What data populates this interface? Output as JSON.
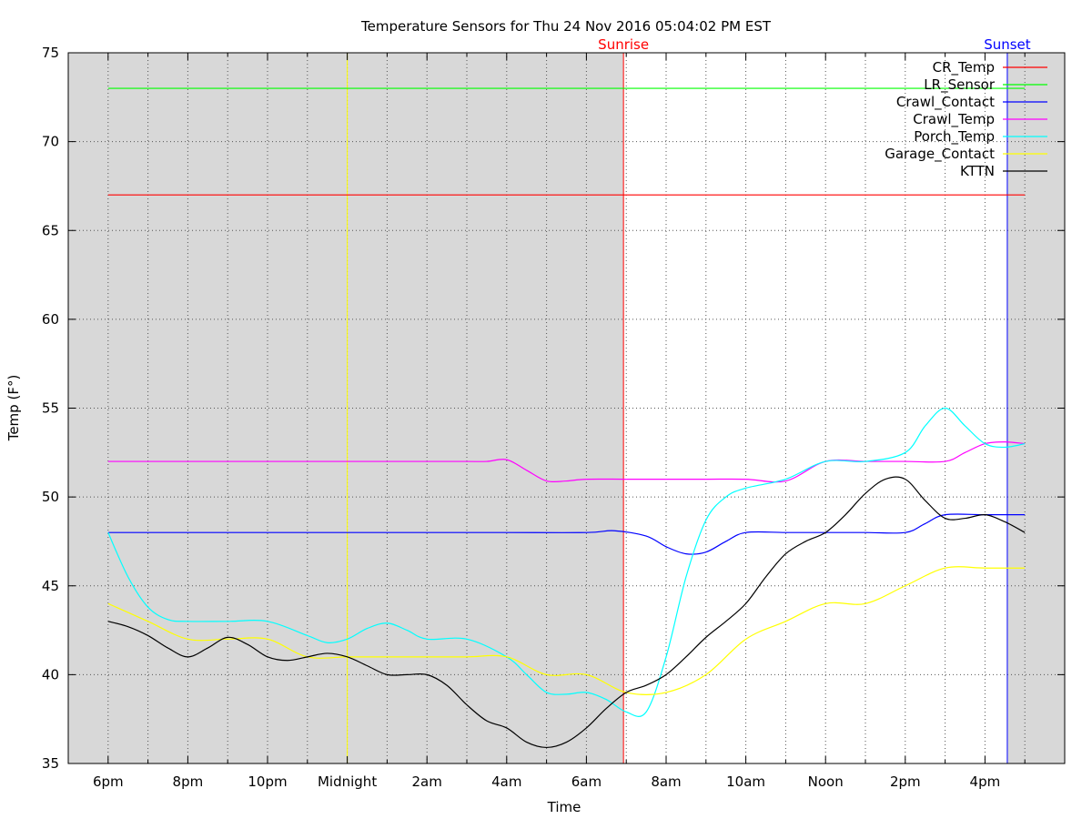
{
  "chart_data": {
    "type": "line",
    "title": "Temperature Sensors for Thu 24 Nov 2016 05:04:02 PM EST",
    "xlabel": "Time",
    "ylabel": "Temp (F°)",
    "xlim": [
      -1,
      24
    ],
    "ylim": [
      35,
      75
    ],
    "yticks": [
      35,
      40,
      45,
      50,
      55,
      60,
      65,
      70,
      75
    ],
    "xticks": [
      {
        "h": 0,
        "label": "6pm"
      },
      {
        "h": 2,
        "label": "8pm"
      },
      {
        "h": 4,
        "label": "10pm"
      },
      {
        "h": 6,
        "label": "Midnight"
      },
      {
        "h": 8,
        "label": "2am"
      },
      {
        "h": 10,
        "label": "4am"
      },
      {
        "h": 12,
        "label": "6am"
      },
      {
        "h": 14,
        "label": "8am"
      },
      {
        "h": 16,
        "label": "10am"
      },
      {
        "h": 18,
        "label": "Noon"
      },
      {
        "h": 20,
        "label": "2pm"
      },
      {
        "h": 22,
        "label": "4pm"
      }
    ],
    "grid": true,
    "legend_position": "top-right",
    "night_shading": [
      {
        "from": -1,
        "to": 12.93
      },
      {
        "from": 22.56,
        "to": 24
      }
    ],
    "markers": [
      {
        "label": "Sunrise",
        "h": 12.93,
        "color": "#ff0000"
      },
      {
        "label": "Sunset",
        "h": 22.56,
        "color": "#0000ff"
      },
      {
        "label": "",
        "h": 6,
        "color": "#ffff00"
      }
    ],
    "series": [
      {
        "name": "CR_Temp",
        "color": "#ff0000",
        "x": [
          0,
          23
        ],
        "y": [
          67,
          67
        ]
      },
      {
        "name": "LR_Sensor",
        "color": "#00ff00",
        "x": [
          0,
          23
        ],
        "y": [
          73,
          73
        ]
      },
      {
        "name": "Crawl_Contact",
        "color": "#0000ff",
        "x": [
          0,
          2,
          4,
          6,
          8,
          10,
          12,
          12.7,
          13.5,
          14,
          14.5,
          15,
          15.5,
          16,
          17,
          18,
          19,
          20,
          20.5,
          21,
          22,
          23
        ],
        "y": [
          48,
          48,
          48,
          48,
          48,
          48,
          48,
          48.1,
          47.8,
          47.2,
          46.8,
          46.9,
          47.5,
          48,
          48,
          48,
          48,
          48,
          48.5,
          49,
          49,
          49
        ]
      },
      {
        "name": "Crawl_Temp",
        "color": "#ff00ff",
        "x": [
          0,
          2,
          4,
          6,
          8,
          9,
          9.5,
          10,
          10.5,
          11,
          11.5,
          12,
          13,
          14,
          15,
          16,
          17,
          18,
          19,
          20,
          21,
          21.5,
          22,
          22.5,
          23
        ],
        "y": [
          52,
          52,
          52,
          52,
          52,
          52,
          52,
          52.1,
          51.5,
          50.9,
          50.9,
          51,
          51,
          51,
          51,
          51,
          50.9,
          52,
          52,
          52,
          52,
          52.5,
          53,
          53.1,
          53
        ]
      },
      {
        "name": "Porch_Temp",
        "color": "#00ffff",
        "x": [
          0,
          0.5,
          1,
          1.5,
          2,
          3,
          4,
          5,
          5.5,
          6,
          6.5,
          7,
          7.5,
          8,
          9,
          10,
          10.5,
          11,
          11.5,
          12,
          12.5,
          13,
          13.5,
          14,
          14.5,
          15,
          15.5,
          16,
          17,
          18,
          19,
          20,
          20.5,
          21,
          21.5,
          22,
          22.5,
          23
        ],
        "y": [
          48,
          45.5,
          43.8,
          43.1,
          43,
          43,
          43,
          42.2,
          41.8,
          42,
          42.6,
          42.9,
          42.5,
          42,
          42,
          41,
          40,
          39,
          38.9,
          39,
          38.6,
          37.9,
          37.9,
          41,
          45.5,
          48.7,
          50,
          50.5,
          51,
          52,
          52,
          52.5,
          54,
          55,
          54,
          53,
          52.8,
          53
        ]
      },
      {
        "name": "Garage_Contact",
        "color": "#ffff00",
        "x": [
          0,
          1,
          2,
          3,
          4,
          5,
          6,
          7,
          8,
          9,
          10,
          11,
          12,
          13,
          14,
          15,
          16,
          17,
          18,
          19,
          20,
          21,
          22,
          23
        ],
        "y": [
          44,
          43,
          42,
          42,
          42,
          41,
          41,
          41,
          41,
          41,
          41,
          40,
          40,
          39,
          39,
          40,
          42,
          43,
          44,
          44,
          45,
          46,
          46,
          46
        ]
      },
      {
        "name": "KTTN",
        "color": "#000000",
        "x": [
          0,
          0.5,
          1,
          1.5,
          2,
          2.5,
          3,
          3.5,
          4,
          4.5,
          5,
          5.5,
          6,
          6.5,
          7,
          7.5,
          8,
          8.5,
          9,
          9.5,
          10,
          10.5,
          11,
          11.5,
          12,
          12.5,
          13,
          13.5,
          14,
          14.5,
          15,
          15.5,
          16,
          16.5,
          17,
          17.5,
          18,
          18.5,
          19,
          19.5,
          20,
          20.5,
          21,
          21.5,
          22,
          22.5,
          23
        ],
        "y": [
          43,
          42.7,
          42.2,
          41.5,
          41,
          41.5,
          42.1,
          41.7,
          41,
          40.8,
          41,
          41.2,
          41,
          40.5,
          40,
          40,
          40,
          39.4,
          38.3,
          37.4,
          37,
          36.2,
          35.9,
          36.2,
          37,
          38.1,
          39,
          39.4,
          40,
          41,
          42.1,
          43,
          44,
          45.5,
          46.8,
          47.5,
          48,
          49,
          50.2,
          51,
          51,
          49.8,
          48.8,
          48.8,
          49,
          48.6,
          48
        ]
      }
    ]
  }
}
